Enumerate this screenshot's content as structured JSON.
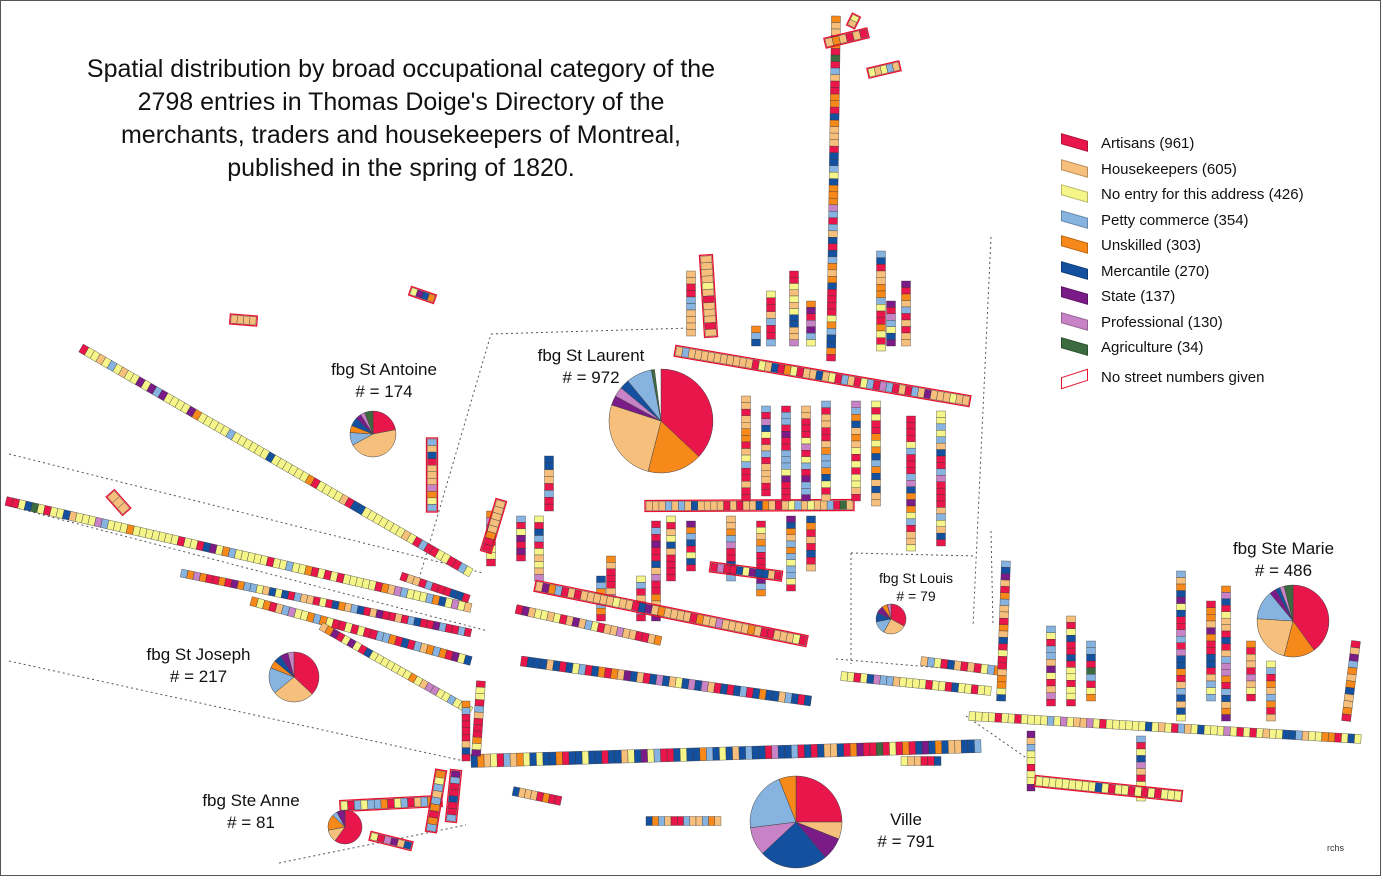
{
  "title": {
    "lines": [
      "Spatial distribution by broad occupational category of the",
      "2798 entries in Thomas Doige's Directory of the",
      "merchants, traders and housekeepers of Montreal,",
      "published in the spring of 1820."
    ]
  },
  "legend": {
    "items": [
      {
        "label": "Artisans (961)",
        "color": "#e8164a"
      },
      {
        "label": "Housekeepers (605)",
        "color": "#f6bf7c"
      },
      {
        "label": "No entry for this address (426)",
        "color": "#f5f58a"
      },
      {
        "label": "Petty commerce (354)",
        "color": "#87b3e0"
      },
      {
        "label": "Unskilled (303)",
        "color": "#f7881a"
      },
      {
        "label": "Mercantile (270)",
        "color": "#1450a0"
      },
      {
        "label": "State (137)",
        "color": "#7b1b87"
      },
      {
        "label": "Professional (130)",
        "color": "#c783c6"
      },
      {
        "label": "Agriculture (34)",
        "color": "#3b6b3e"
      }
    ],
    "no_numbers": {
      "label": "No street numbers given",
      "color": "#e8102e"
    }
  },
  "districts": [
    {
      "name": "fbg St Antoine",
      "count": "# = 174",
      "total": 174,
      "shares": {
        "Artisans": 0.22,
        "Housekeepers": 0.45,
        "Petty commerce": 0.09,
        "Unskilled": 0.05,
        "Mercantile": 0.06,
        "State": 0.04,
        "Professional": 0.03,
        "Agriculture": 0.06
      }
    },
    {
      "name": "fbg St Laurent",
      "count": "# = 972",
      "total": 972,
      "shares": {
        "Artisans": 0.37,
        "Unskilled": 0.17,
        "Housekeepers": 0.26,
        "State": 0.03,
        "Professional": 0.03,
        "Mercantile": 0.03,
        "Petty commerce": 0.08,
        "Agriculture": 0.01
      }
    },
    {
      "name": "fbg St Louis",
      "count": "# = 79",
      "total": 79,
      "shares": {
        "Artisans": 0.33,
        "Housekeepers": 0.25,
        "Petty commerce": 0.14,
        "Mercantile": 0.1,
        "State": 0.08,
        "Unskilled": 0.06,
        "Professional": 0.04
      }
    },
    {
      "name": "fbg Ste Marie",
      "count": "# = 486",
      "total": 486,
      "shares": {
        "Artisans": 0.4,
        "Unskilled": 0.14,
        "Housekeepers": 0.22,
        "Petty commerce": 0.13,
        "State": 0.03,
        "Mercantile": 0.02,
        "Professional": 0.02,
        "Agriculture": 0.04
      }
    },
    {
      "name": "fbg St Joseph",
      "count": "# = 217",
      "total": 217,
      "shares": {
        "Artisans": 0.37,
        "Housekeepers": 0.27,
        "Petty commerce": 0.17,
        "Unskilled": 0.05,
        "Mercantile": 0.05,
        "State": 0.05,
        "Professional": 0.04
      }
    },
    {
      "name": "fbg Ste Anne",
      "count": "# = 81",
      "total": 81,
      "shares": {
        "Artisans": 0.6,
        "Housekeepers": 0.12,
        "Unskilled": 0.15,
        "Petty commerce": 0.05,
        "State": 0.08
      }
    },
    {
      "name": "Ville",
      "count": "# = 791",
      "total": 791,
      "shares": {
        "Artisans": 0.25,
        "Housekeepers": 0.06,
        "State": 0.08,
        "Mercantile": 0.24,
        "Professional": 0.1,
        "Petty commerce": 0.21,
        "Unskilled": 0.06
      }
    }
  ],
  "credit": "rchs"
}
